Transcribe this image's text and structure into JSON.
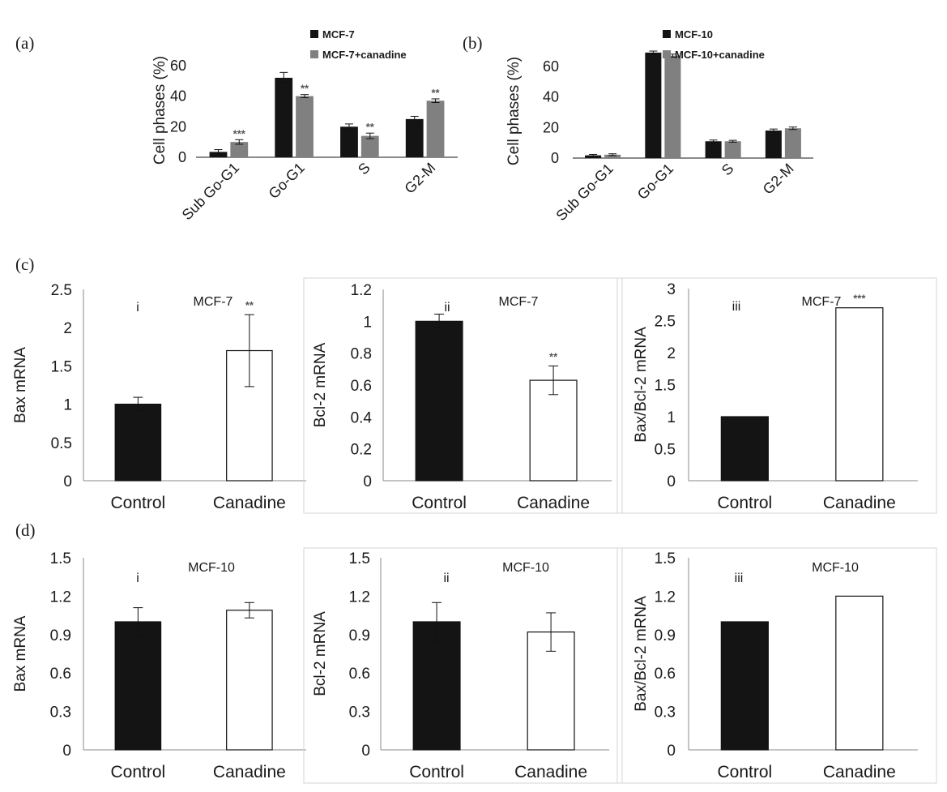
{
  "panel_labels": {
    "a": "(a)",
    "b": "(b)",
    "c": "(c)",
    "d": "(d)"
  },
  "colors": {
    "dark_bar": "#141414",
    "grey_bar": "#808080",
    "open_bar": "#ffffff",
    "axis": "#8a8a8a",
    "star": "#555555"
  },
  "chart_data": [
    {
      "id": "a",
      "type": "bar",
      "ylabel": "Cell phases (%)",
      "ylim": [
        0,
        70
      ],
      "yticks": [
        0,
        20,
        40,
        60
      ],
      "categories": [
        "Sub Go-G1",
        "Go-G1",
        "S",
        "G2-M"
      ],
      "series": [
        {
          "name": "MCF-7",
          "values": [
            3.5,
            52,
            20,
            25
          ],
          "errors": [
            1.5,
            3.5,
            1.8,
            1.8
          ]
        },
        {
          "name": "MCF-7+canadine",
          "values": [
            10,
            40,
            14,
            37
          ],
          "errors": [
            1.5,
            1.0,
            1.8,
            1.2
          ],
          "stars": [
            "***",
            "**",
            "**",
            "**"
          ]
        }
      ],
      "legend_position": "top-right",
      "grid": false
    },
    {
      "id": "b",
      "type": "bar",
      "ylabel": "Cell phases (%)",
      "ylim": [
        0,
        70
      ],
      "yticks": [
        0,
        20,
        40,
        60
      ],
      "categories": [
        "Sub Go-G1",
        "Go-G1",
        "S",
        "G2-M"
      ],
      "series": [
        {
          "name": "MCF-10",
          "values": [
            1.8,
            69,
            11,
            18
          ],
          "errors": [
            0.6,
            1.0,
            0.8,
            1.0
          ]
        },
        {
          "name": "MCF-10+canadine",
          "values": [
            2.2,
            67,
            11,
            19.5
          ],
          "errors": [
            0.6,
            1.0,
            0.6,
            0.8
          ]
        }
      ],
      "legend_position": "top-right",
      "grid": false
    },
    {
      "id": "c-i",
      "type": "bar",
      "roman": "i",
      "cell": "MCF-7",
      "ylabel": "Bax mRNA",
      "ylim": [
        0,
        2.5
      ],
      "yticks": [
        "0",
        "0.5",
        "1",
        "1.5",
        "2",
        "2.5"
      ],
      "categories": [
        "Control",
        "Canadine"
      ],
      "values": [
        1.0,
        1.7
      ],
      "errors": [
        0.09,
        0.47
      ],
      "stars": [
        "",
        "**"
      ]
    },
    {
      "id": "c-ii",
      "type": "bar",
      "roman": "ii",
      "cell": "MCF-7",
      "ylabel": "Bcl-2 mRNA",
      "ylim": [
        0,
        1.2
      ],
      "yticks": [
        "0",
        "0.2",
        "0.4",
        "0.6",
        "0.8",
        "1",
        "1.2"
      ],
      "categories": [
        "Control",
        "Canadine"
      ],
      "values": [
        1.0,
        0.63
      ],
      "errors": [
        0.045,
        0.09
      ],
      "stars": [
        "",
        "**"
      ]
    },
    {
      "id": "c-iii",
      "type": "bar",
      "roman": "iii",
      "cell": "MCF-7",
      "ylabel": "Bax/Bcl-2 mRNA",
      "ylim": [
        0,
        3
      ],
      "yticks": [
        "0",
        "0.5",
        "1",
        "1.5",
        "2",
        "2.5",
        "3"
      ],
      "categories": [
        "Control",
        "Canadine"
      ],
      "values": [
        1.0,
        2.7
      ],
      "errors": [
        0,
        0
      ],
      "stars": [
        "",
        "***"
      ]
    },
    {
      "id": "d-i",
      "type": "bar",
      "roman": "i",
      "cell": "MCF-10",
      "ylabel": "Bax mRNA",
      "ylim": [
        0,
        1.5
      ],
      "yticks": [
        "0",
        "0.3",
        "0.6",
        "0.9",
        "1.2",
        "1.5"
      ],
      "categories": [
        "Control",
        "Canadine"
      ],
      "values": [
        1.0,
        1.09
      ],
      "errors": [
        0.11,
        0.06
      ],
      "stars": [
        "",
        ""
      ]
    },
    {
      "id": "d-ii",
      "type": "bar",
      "roman": "ii",
      "cell": "MCF-10",
      "ylabel": "Bcl-2 mRNA",
      "ylim": [
        0,
        1.5
      ],
      "yticks": [
        "0",
        "0.3",
        "0.6",
        "0.9",
        "1.2",
        "1.5"
      ],
      "categories": [
        "Control",
        "Canadine"
      ],
      "values": [
        1.0,
        0.92
      ],
      "errors": [
        0.15,
        0.15
      ],
      "stars": [
        "",
        ""
      ]
    },
    {
      "id": "d-iii",
      "type": "bar",
      "roman": "iii",
      "cell": "MCF-10",
      "ylabel": "Bax/Bcl-2 mRNA",
      "ylim": [
        0,
        1.5
      ],
      "yticks": [
        "0",
        "0.3",
        "0.6",
        "0.9",
        "1.2",
        "1.5"
      ],
      "categories": [
        "Control",
        "Canadine"
      ],
      "values": [
        1.0,
        1.2
      ],
      "errors": [
        0,
        0
      ],
      "stars": [
        "",
        ""
      ]
    }
  ]
}
